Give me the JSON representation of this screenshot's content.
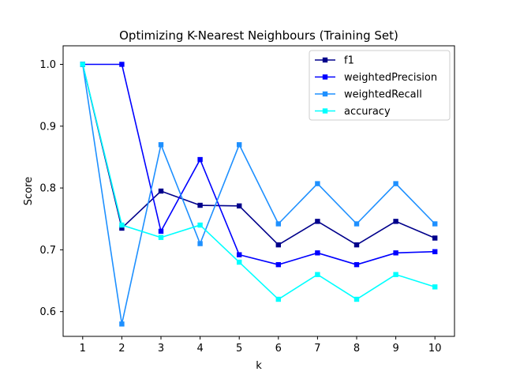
{
  "chart_data": {
    "type": "line",
    "title": "Optimizing K-Nearest Neighbours (Training Set)",
    "xlabel": "k",
    "ylabel": "Score",
    "x": [
      1,
      2,
      3,
      4,
      5,
      6,
      7,
      8,
      9,
      10
    ],
    "xlim": [
      0.5,
      10.5
    ],
    "ylim": [
      0.56,
      1.03
    ],
    "yticks": [
      "0.6",
      "0.7",
      "0.8",
      "0.9",
      "1.0"
    ],
    "xticks": [
      "1",
      "2",
      "3",
      "4",
      "5",
      "6",
      "7",
      "8",
      "9",
      "10"
    ],
    "grid": false,
    "legend_position": "top-right",
    "series": [
      {
        "name": "f1",
        "color": "#00008b",
        "marker": "square",
        "values": [
          1.0,
          0.735,
          0.795,
          0.772,
          0.771,
          0.708,
          0.746,
          0.708,
          0.746,
          0.719
        ]
      },
      {
        "name": "weightedPrecision",
        "color": "#0000ff",
        "marker": "square",
        "values": [
          1.0,
          1.0,
          0.73,
          0.846,
          0.692,
          0.676,
          0.695,
          0.676,
          0.695,
          0.697
        ]
      },
      {
        "name": "weightedRecall",
        "color": "#1e90ff",
        "marker": "square",
        "values": [
          1.0,
          0.58,
          0.87,
          0.71,
          0.87,
          0.742,
          0.807,
          0.742,
          0.807,
          0.742
        ]
      },
      {
        "name": "accuracy",
        "color": "#00ffff",
        "marker": "square",
        "values": [
          1.0,
          0.74,
          0.72,
          0.74,
          0.68,
          0.62,
          0.66,
          0.62,
          0.66,
          0.64
        ]
      }
    ]
  }
}
